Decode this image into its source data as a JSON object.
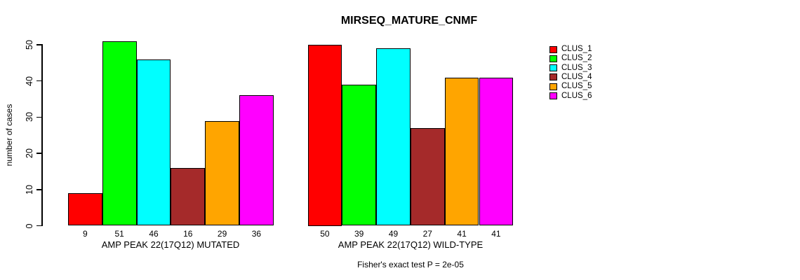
{
  "chart_data": {
    "type": "bar",
    "title": "MIRSEQ_MATURE_CNMF",
    "ylabel": "number of cases",
    "ylim": [
      0,
      50
    ],
    "yticks": [
      0,
      10,
      20,
      30,
      40,
      50
    ],
    "grid": false,
    "legend_position": "right",
    "series_labels": [
      "CLUS_1",
      "CLUS_2",
      "CLUS_3",
      "CLUS_4",
      "CLUS_5",
      "CLUS_6"
    ],
    "colors": [
      "#FF0000",
      "#00FF00",
      "#00FFFF",
      "#A52A2A",
      "#FFA500",
      "#FF00FF"
    ],
    "groups": [
      {
        "label": "AMP PEAK 22(17Q12) MUTATED",
        "values": [
          9,
          51,
          46,
          16,
          29,
          36
        ]
      },
      {
        "label": "AMP PEAK 22(17Q12) WILD-TYPE",
        "values": [
          50,
          39,
          49,
          27,
          41,
          41
        ]
      }
    ],
    "bar_value_labels": true,
    "annotation": "Fisher's exact test P = 2e-05"
  }
}
